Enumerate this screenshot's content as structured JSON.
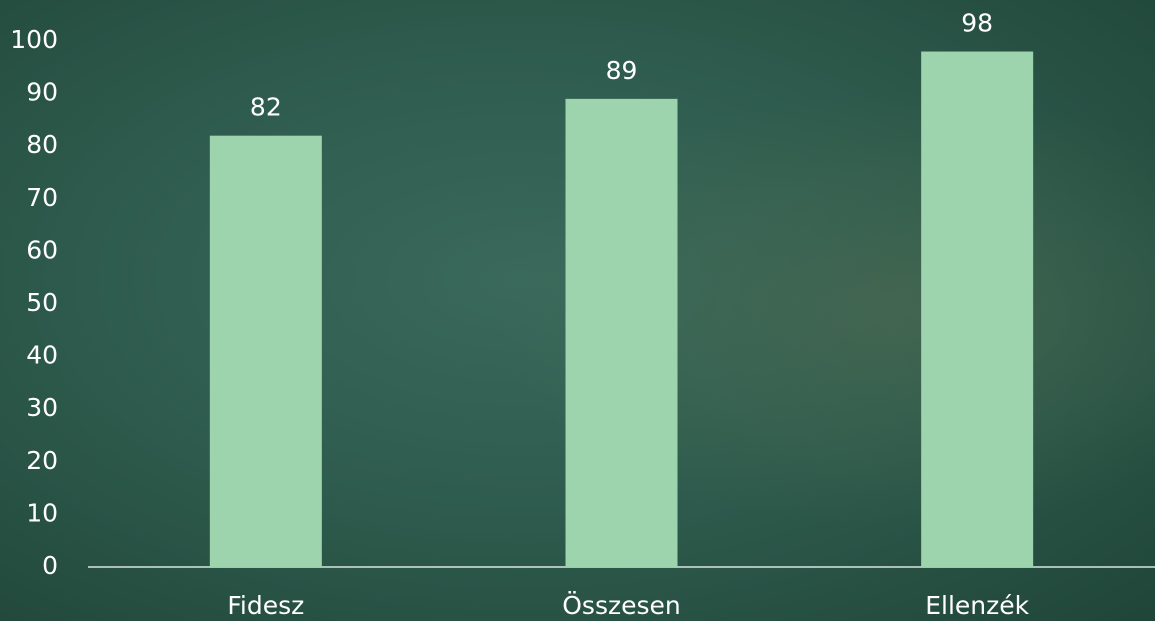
{
  "chart_data": {
    "type": "bar",
    "categories": [
      "Fidesz",
      "Összesen",
      "Ellenzék"
    ],
    "values": [
      82,
      89,
      98
    ],
    "color": "#9dd4ae",
    "ylim": [
      0,
      100
    ],
    "yticks": [
      0,
      10,
      20,
      30,
      40,
      50,
      60,
      70,
      80,
      90,
      100
    ],
    "grid": false,
    "data_labels": true
  }
}
